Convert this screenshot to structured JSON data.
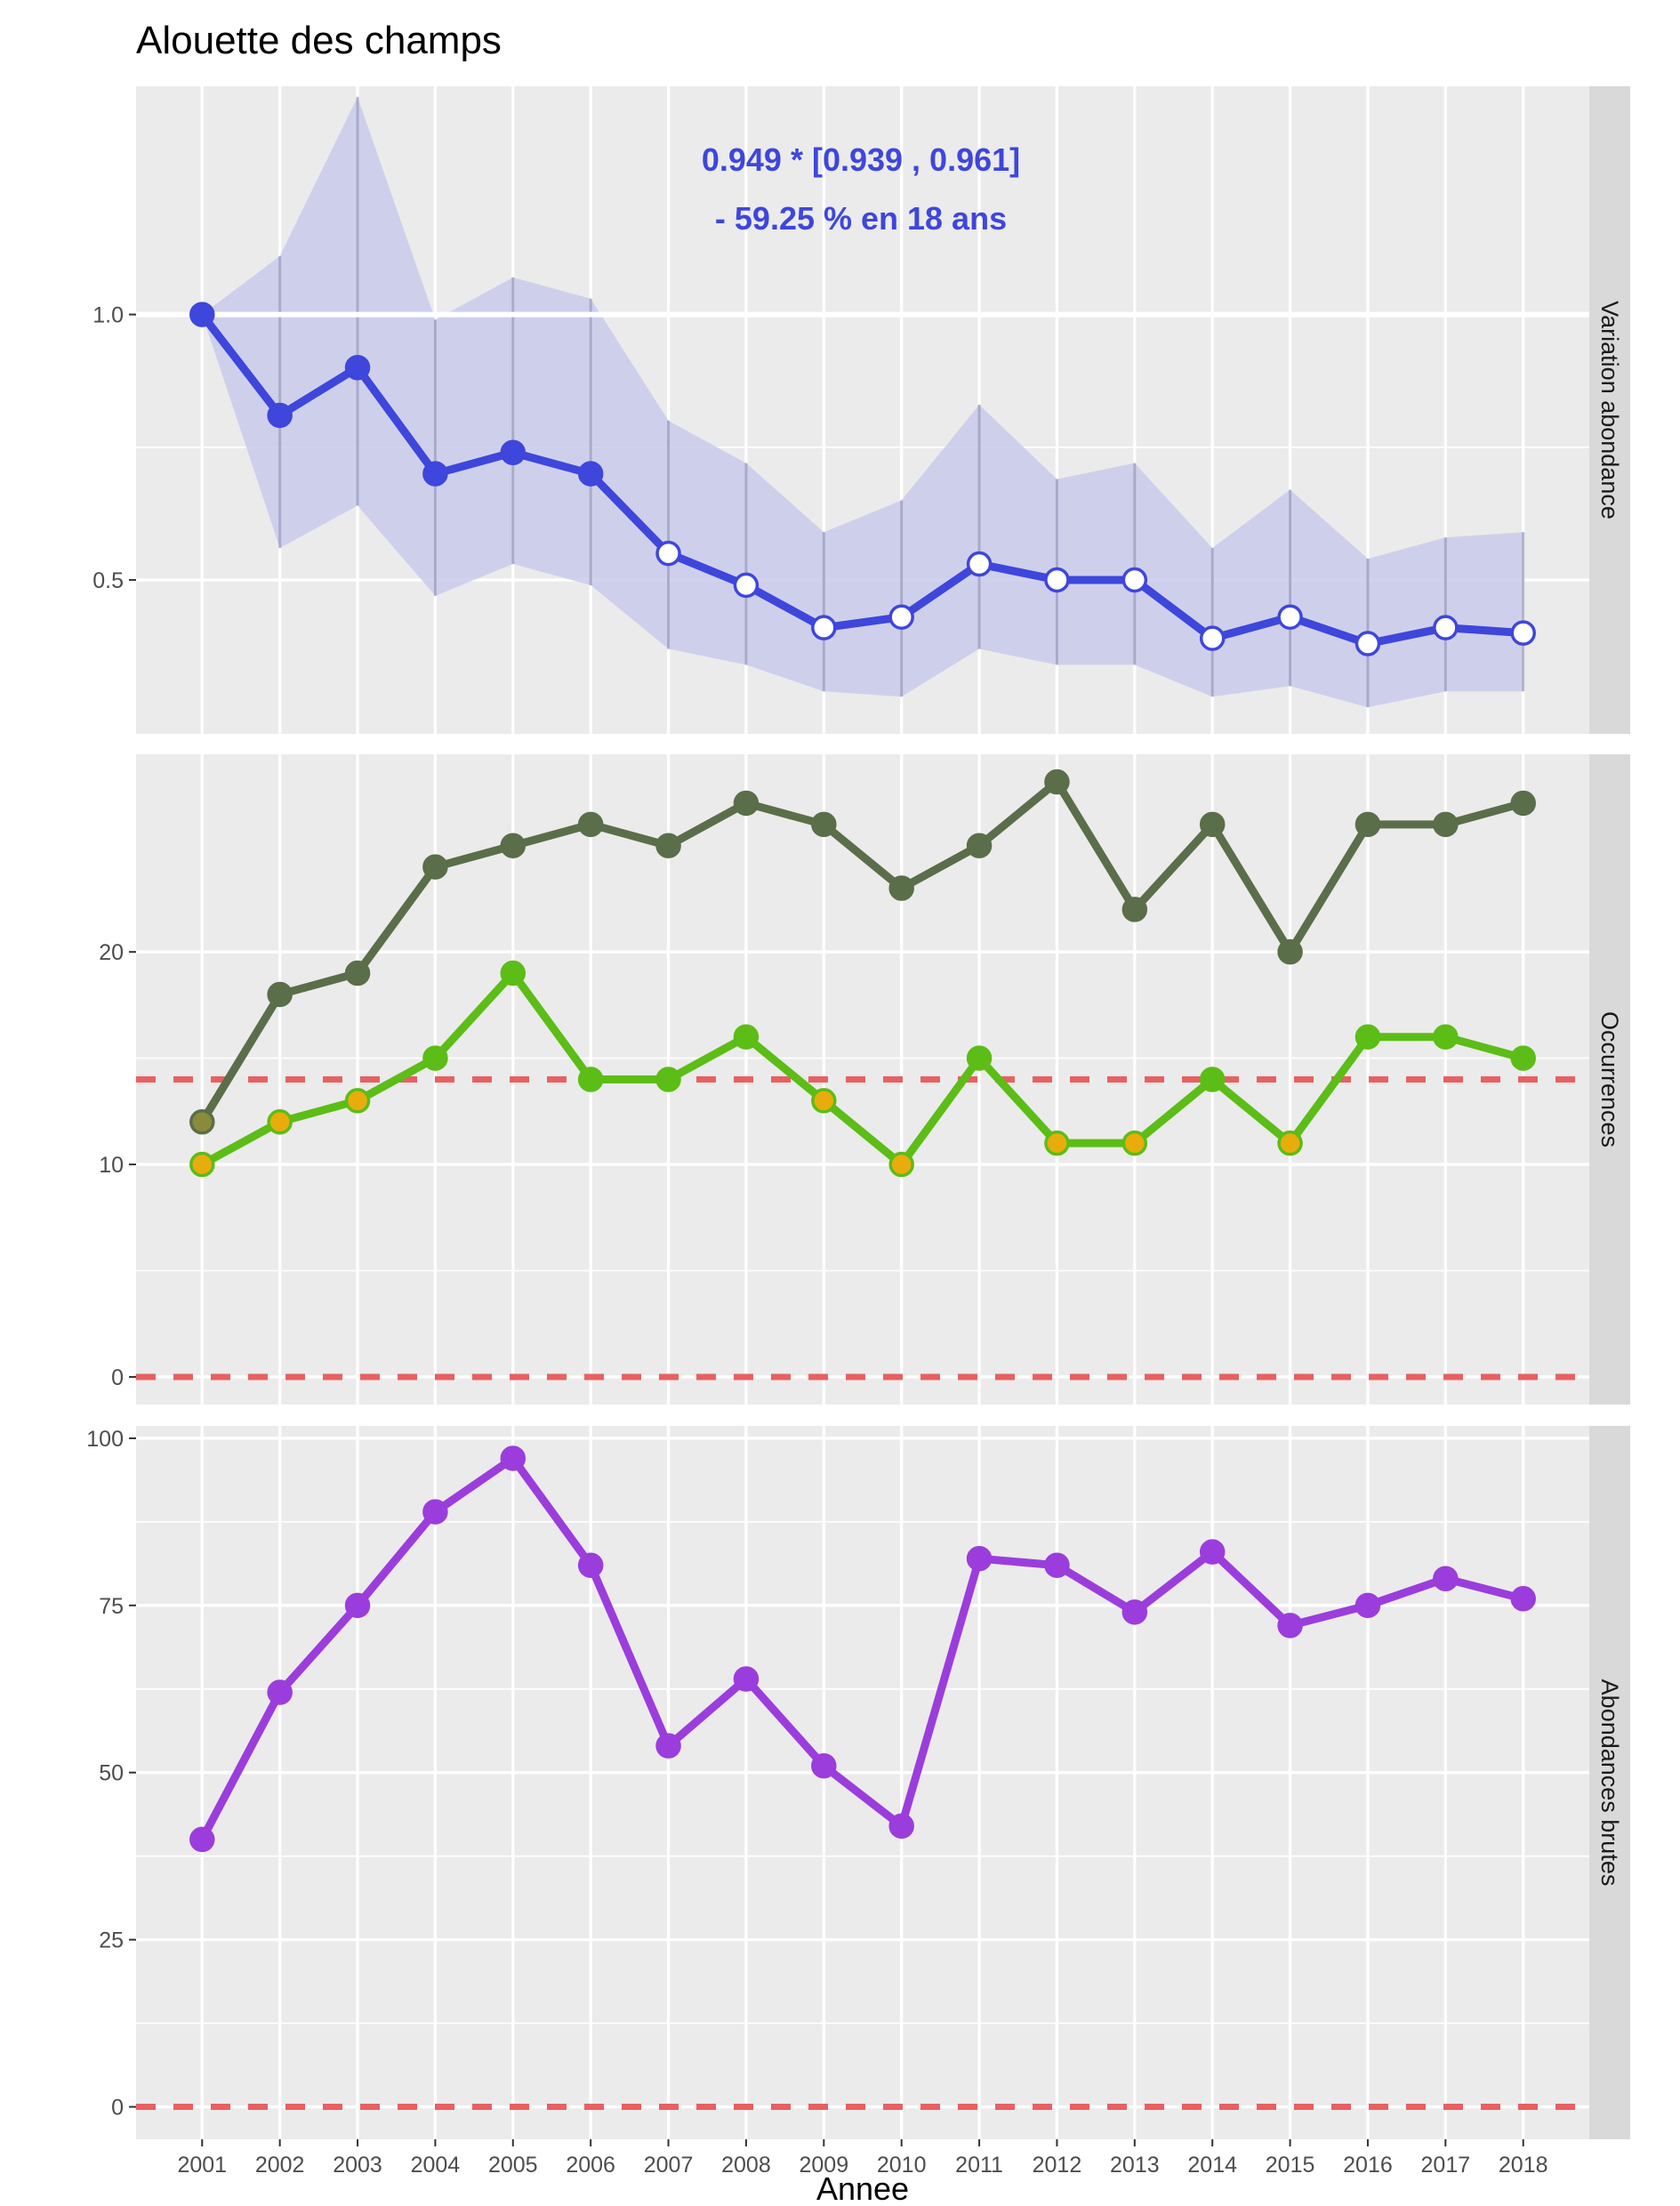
{
  "title": "Alouette des champs",
  "chart_data": {
    "type": "line",
    "title": "Alouette des champs",
    "xlabel": "Annee",
    "x": [
      2001,
      2002,
      2003,
      2004,
      2005,
      2006,
      2007,
      2008,
      2009,
      2010,
      2011,
      2012,
      2013,
      2014,
      2015,
      2016,
      2017,
      2018
    ],
    "panels": [
      {
        "strip": "Variation abondance",
        "ylim": [
          0.21,
          1.43
        ],
        "yticks": [
          0.5,
          1.0
        ],
        "ytick_labels": [
          "0.5",
          "1.0"
        ],
        "ref_lines": [
          {
            "y": 1.0,
            "color": "#ffffff",
            "style": "solid"
          }
        ],
        "annotation": [
          "0.949 *  [0.939 , 0.961]",
          "- 59.25 % en 18 ans"
        ],
        "annotation_color": "#3e46dc",
        "ribbon": {
          "lower": [
            1.0,
            0.56,
            0.64,
            0.47,
            0.53,
            0.49,
            0.37,
            0.34,
            0.29,
            0.28,
            0.37,
            0.34,
            0.34,
            0.28,
            0.3,
            0.26,
            0.29,
            0.29
          ],
          "upper": [
            1.0,
            1.11,
            1.41,
            0.99,
            1.07,
            1.03,
            0.8,
            0.72,
            0.59,
            0.65,
            0.83,
            0.69,
            0.72,
            0.56,
            0.67,
            0.54,
            0.58,
            0.59
          ],
          "color": "#c9cbeb"
        },
        "series": [
          {
            "values": [
              1.0,
              0.81,
              0.9,
              0.7,
              0.74,
              0.7,
              0.55,
              0.49,
              0.41,
              0.43,
              0.53,
              0.5,
              0.5,
              0.39,
              0.43,
              0.38,
              0.41,
              0.4
            ],
            "line_color": "#3e46dc",
            "point_fill": [
              "#3e46dc",
              "#3e46dc",
              "#3e46dc",
              "#3e46dc",
              "#3e46dc",
              "#3e46dc",
              "#ffffff",
              "#ffffff",
              "#ffffff",
              "#ffffff",
              "#ffffff",
              "#ffffff",
              "#ffffff",
              "#ffffff",
              "#ffffff",
              "#ffffff",
              "#ffffff",
              "#ffffff"
            ],
            "point_stroke": "#3e46dc"
          }
        ]
      },
      {
        "strip": "Occurrences",
        "ylim": [
          -1.3,
          29.3
        ],
        "yticks": [
          0,
          10,
          20
        ],
        "ytick_labels": [
          "0",
          "10",
          "20"
        ],
        "ref_lines": [
          {
            "y": 0,
            "color": "#e86060",
            "style": "dashed"
          },
          {
            "y": 14,
            "color": "#e86060",
            "style": "dashed"
          }
        ],
        "series": [
          {
            "values": [
              12,
              18,
              19,
              24,
              25,
              26,
              25,
              27,
              26,
              23,
              25,
              28,
              22,
              26,
              20,
              26,
              26,
              27
            ],
            "line_color": "#5a6e4a",
            "point_fill": [
              "#8a8a3a",
              "#5a6e4a",
              "#5a6e4a",
              "#5a6e4a",
              "#5a6e4a",
              "#5a6e4a",
              "#5a6e4a",
              "#5a6e4a",
              "#5a6e4a",
              "#5a6e4a",
              "#5a6e4a",
              "#5a6e4a",
              "#5a6e4a",
              "#5a6e4a",
              "#5a6e4a",
              "#5a6e4a",
              "#5a6e4a",
              "#5a6e4a"
            ],
            "point_stroke": "#5a6e4a"
          },
          {
            "values": [
              10,
              12,
              13,
              15,
              19,
              14,
              14,
              16,
              13,
              10,
              15,
              11,
              11,
              14,
              11,
              16,
              16,
              15
            ],
            "line_color": "#5cbd16",
            "point_fill": [
              "#e8ad0c",
              "#e8ad0c",
              "#e8ad0c",
              "#5cbd16",
              "#5cbd16",
              "#5cbd16",
              "#5cbd16",
              "#5cbd16",
              "#e8ad0c",
              "#e8ad0c",
              "#5cbd16",
              "#e8ad0c",
              "#e8ad0c",
              "#5cbd16",
              "#e8ad0c",
              "#5cbd16",
              "#5cbd16",
              "#5cbd16"
            ],
            "point_stroke": "#5cbd16"
          }
        ]
      },
      {
        "strip": "Abondances brutes",
        "ylim": [
          -4.85,
          101.85
        ],
        "yticks": [
          0,
          25,
          50,
          75,
          100
        ],
        "ytick_labels": [
          "0",
          "25",
          "50",
          "75",
          "100"
        ],
        "ref_lines": [
          {
            "y": 0,
            "color": "#e86060",
            "style": "dashed"
          }
        ],
        "series": [
          {
            "values": [
              40,
              62,
              75,
              89,
              97,
              81,
              54,
              64,
              51,
              42,
              82,
              81,
              74,
              83,
              72,
              75,
              79,
              76
            ],
            "line_color": "#9b3ddc",
            "point_fill": [
              "#9b3ddc",
              "#9b3ddc",
              "#9b3ddc",
              "#9b3ddc",
              "#9b3ddc",
              "#9b3ddc",
              "#9b3ddc",
              "#9b3ddc",
              "#9b3ddc",
              "#9b3ddc",
              "#9b3ddc",
              "#9b3ddc",
              "#9b3ddc",
              "#9b3ddc",
              "#9b3ddc",
              "#9b3ddc",
              "#9b3ddc",
              "#9b3ddc"
            ],
            "point_stroke": "#9b3ddc"
          }
        ]
      }
    ]
  }
}
